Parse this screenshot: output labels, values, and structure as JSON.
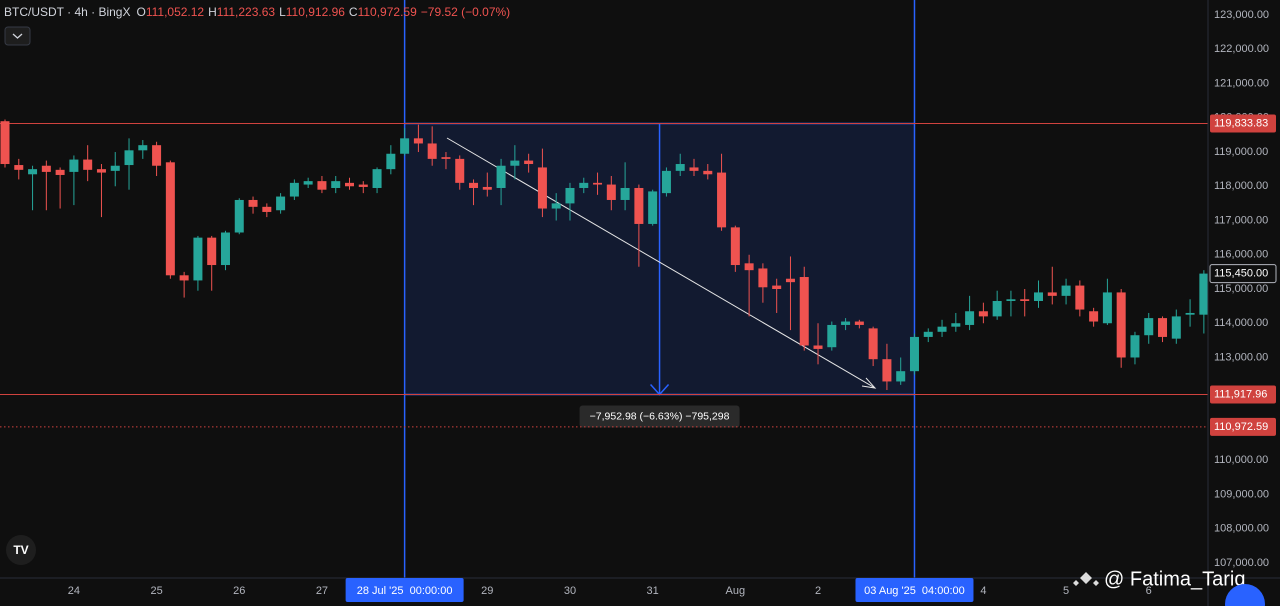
{
  "chart_data": {
    "type": "candlestick",
    "title": "BTC/USDT · 4h · BingX",
    "legend": [
      {
        "key": "O",
        "value": "111,052.12"
      },
      {
        "key": "H",
        "value": "111,223.63"
      },
      {
        "key": "L",
        "value": "110,912.96"
      },
      {
        "key": "C",
        "value": "110,972.59"
      }
    ],
    "change": "−79.52 (−0.07%)",
    "up_color": "#26a69a",
    "down_color": "#ef5350",
    "categories": [
      null,
      null,
      null,
      null,
      null,
      "24",
      null,
      null,
      null,
      null,
      null,
      "25",
      null,
      null,
      null,
      null,
      null,
      "26",
      null,
      null,
      null,
      null,
      null,
      "27",
      null,
      null,
      null,
      null,
      null,
      "28 Jul '25  00:00:00",
      null,
      null,
      null,
      null,
      null,
      "29",
      null,
      null,
      null,
      null,
      null,
      "30",
      null,
      null,
      null,
      null,
      null,
      "31",
      null,
      null,
      null,
      null,
      null,
      "Aug",
      null,
      null,
      null,
      null,
      null,
      "2",
      null,
      null,
      null,
      null,
      null,
      null,
      "03 Aug '25  04:00:00",
      null,
      null,
      null,
      null,
      "4",
      null,
      null,
      null,
      null,
      null,
      "5",
      null,
      null,
      null,
      null,
      null,
      "6",
      null,
      null,
      null,
      null
    ],
    "open": [
      119900,
      118620,
      118350,
      118600,
      118480,
      118420,
      118780,
      118500,
      118450,
      118620,
      119050,
      119200,
      118700,
      115400,
      115250,
      116500,
      115700,
      116650,
      117600,
      117400,
      117300,
      117700,
      118050,
      118150,
      117950,
      118100,
      118050,
      117950,
      118500,
      118950,
      119400,
      119250,
      118850,
      118800,
      118100,
      117980,
      117950,
      118600,
      118750,
      118550,
      117350,
      117500,
      117950,
      118100,
      118050,
      117600,
      117950,
      116900,
      117800,
      118450,
      118550,
      118450,
      118400,
      116800,
      115750,
      115600,
      115100,
      115300,
      115350,
      113350,
      113300,
      113950,
      114050,
      113850,
      112950,
      112300,
      112600,
      113600,
      113750,
      113900,
      113950,
      114350,
      114200,
      114650,
      114700,
      114650,
      114900,
      114800,
      115100,
      114350,
      114000,
      114900,
      113000,
      113650,
      114150,
      113550,
      114250,
      114250
    ],
    "high": [
      119950,
      118800,
      118600,
      118750,
      118550,
      118900,
      119200,
      118650,
      119000,
      119400,
      119350,
      119300,
      118750,
      115500,
      116550,
      116550,
      116700,
      117650,
      117700,
      117500,
      117800,
      118200,
      118250,
      118300,
      118300,
      118250,
      118150,
      118550,
      119200,
      119700,
      119800,
      119750,
      119000,
      118900,
      118200,
      118400,
      118800,
      119200,
      118950,
      119100,
      117800,
      118100,
      118250,
      118400,
      118300,
      118700,
      118050,
      117900,
      118550,
      118950,
      118800,
      118650,
      118950,
      116850,
      116000,
      115750,
      115300,
      115950,
      115650,
      114000,
      114050,
      114150,
      114100,
      113900,
      113400,
      113000,
      113700,
      113850,
      114100,
      114300,
      114800,
      114600,
      114950,
      114950,
      115000,
      115250,
      115650,
      115300,
      115250,
      114450,
      115300,
      115000,
      113750,
      114300,
      114200,
      114400,
      114700,
      115550
    ],
    "low": [
      118550,
      118200,
      117300,
      117300,
      117350,
      117450,
      118150,
      117100,
      118000,
      117900,
      118800,
      118300,
      115300,
      114750,
      114950,
      114950,
      115550,
      116600,
      117200,
      117100,
      117200,
      117600,
      117950,
      117800,
      117800,
      117900,
      117800,
      117800,
      118350,
      118900,
      119000,
      118600,
      118500,
      117900,
      117450,
      117700,
      117450,
      118200,
      118400,
      117100,
      117000,
      117000,
      117800,
      117750,
      117300,
      117300,
      115650,
      116850,
      117700,
      118300,
      118300,
      118200,
      116700,
      115500,
      114200,
      114600,
      114300,
      113800,
      113200,
      112800,
      113200,
      113800,
      113850,
      112750,
      112050,
      112200,
      112500,
      113450,
      113600,
      113750,
      113800,
      114000,
      114100,
      114200,
      114200,
      114450,
      114550,
      114550,
      114200,
      113900,
      113950,
      112700,
      112800,
      113400,
      113450,
      113400,
      113900,
      113700
    ],
    "close": [
      118650,
      118480,
      118500,
      118420,
      118330,
      118780,
      118480,
      118400,
      118600,
      119050,
      119200,
      118600,
      115400,
      115250,
      116500,
      115700,
      116650,
      117600,
      117400,
      117250,
      117700,
      118100,
      118150,
      117900,
      118150,
      118000,
      117980,
      118500,
      118950,
      119400,
      119250,
      118800,
      118800,
      118100,
      117950,
      117900,
      118600,
      118750,
      118650,
      117350,
      117500,
      117950,
      118100,
      118050,
      117600,
      117950,
      116900,
      117850,
      118450,
      118650,
      118450,
      118350,
      116800,
      115700,
      115550,
      115050,
      115000,
      115200,
      113350,
      113250,
      113950,
      114050,
      113950,
      112950,
      112300,
      112600,
      113600,
      113750,
      113900,
      114000,
      114350,
      114200,
      114650,
      114700,
      114650,
      114900,
      114800,
      115100,
      114400,
      114050,
      114900,
      113000,
      113650,
      114150,
      113600,
      114200,
      114300,
      115450
    ],
    "ylim": [
      106560,
      123440
    ],
    "yticks": [
      {
        "value": 107000,
        "label": "107,000.00"
      },
      {
        "value": 108000,
        "label": "108,000.00"
      },
      {
        "value": 109000,
        "label": "109,000.00"
      },
      {
        "value": 110000,
        "label": "110,000.00"
      },
      {
        "value": 111000,
        "label": "111,000.00"
      },
      {
        "value": 112000,
        "label": "112,000.00"
      },
      {
        "value": 113000,
        "label": "113,000.00"
      },
      {
        "value": 114000,
        "label": "114,000.00"
      },
      {
        "value": 115000,
        "label": "115,000.00"
      },
      {
        "value": 116000,
        "label": "116,000.00"
      },
      {
        "value": 117000,
        "label": "117,000.00"
      },
      {
        "value": 118000,
        "label": "118,000.00"
      },
      {
        "value": 119000,
        "label": "119,000.00"
      },
      {
        "value": 120000,
        "label": "120,000.00"
      },
      {
        "value": 121000,
        "label": "121,000.00"
      },
      {
        "value": 122000,
        "label": "122,000.00"
      },
      {
        "value": 123000,
        "label": "123,000.00"
      }
    ],
    "grid": false,
    "price_lines": [
      {
        "value": 119833.83,
        "label": "119,833.83",
        "style": "solid"
      },
      {
        "value": 111917.96,
        "label": "111,917.96",
        "style": "solid"
      },
      {
        "value": 110972.59,
        "label": "110,972.59",
        "style": "dotted"
      }
    ],
    "last_price": {
      "value": 115450,
      "label": "115,450.00"
    },
    "measure_label": "−7,952.98 (−6.63%) −795,298",
    "watermark": "@ Fatima_Tariq"
  }
}
